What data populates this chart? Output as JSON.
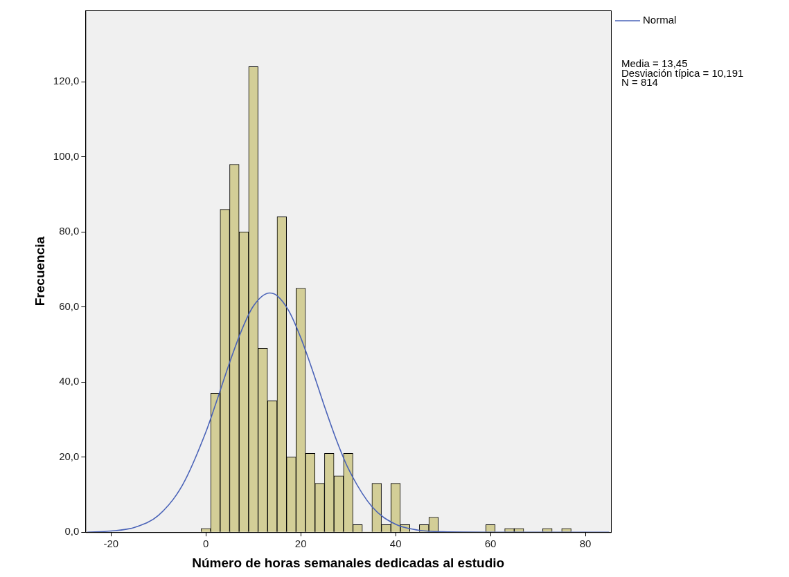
{
  "chart_data": {
    "type": "histogram",
    "xlabel": "Número de horas semanales dedicadas al estudio",
    "ylabel": "Frecuencia",
    "bins": [
      -1,
      1,
      3,
      5,
      7,
      9,
      11,
      13,
      15,
      17,
      19,
      21,
      23,
      25,
      27,
      29,
      31,
      33,
      35,
      37,
      39,
      41,
      43,
      45,
      47,
      49,
      51,
      53,
      55,
      57,
      59,
      61,
      63,
      65,
      67,
      69,
      71,
      73,
      75,
      77
    ],
    "values": [
      1,
      37,
      86,
      98,
      80,
      124,
      49,
      35,
      84,
      20,
      65,
      21,
      13,
      21,
      15,
      21,
      2,
      0,
      13,
      2,
      13,
      2,
      0,
      2,
      4,
      0,
      0,
      0,
      0,
      0,
      2,
      0,
      1,
      1,
      0,
      0,
      1,
      0,
      1
    ],
    "color": "#d3ce97",
    "series": [
      {
        "type": "line",
        "name": "Normal",
        "color": "#4a63b8",
        "x": [
          -25,
          -20,
          -15,
          -10,
          -5,
          0,
          2.5,
          5,
          7.5,
          10,
          13.45,
          15,
          17.5,
          20,
          22.5,
          25,
          27.5,
          30,
          35,
          40,
          45,
          50,
          60,
          85
        ],
        "values": [
          0,
          0.3,
          1.3,
          4.5,
          12.4,
          26.7,
          35.8,
          45.2,
          53.7,
          60.2,
          63.7,
          63.0,
          58.9,
          51.8,
          43.0,
          33.5,
          24.6,
          17.0,
          6.8,
          2.1,
          0.5,
          0.1,
          0,
          0
        ]
      }
    ],
    "xlim": [
      -25.4,
      85.4
    ],
    "xticks": [
      -20,
      0,
      20,
      40,
      60,
      80
    ],
    "ylim": [
      0,
      139
    ],
    "yticks": [
      {
        "value": 0,
        "label": "0,0"
      },
      {
        "value": 20,
        "label": "20,0"
      },
      {
        "value": 40,
        "label": "40,0"
      },
      {
        "value": 60,
        "label": "60,0"
      },
      {
        "value": 80,
        "label": "80,0"
      },
      {
        "value": 100,
        "label": "100,0"
      },
      {
        "value": 120,
        "label": "120,0"
      }
    ],
    "grid": false,
    "legend": "top right",
    "marker": "none",
    "line_style": "solid",
    "annotations": [
      "Media = 13,45",
      "Desviación típica = 10,191",
      "N = 814"
    ]
  }
}
